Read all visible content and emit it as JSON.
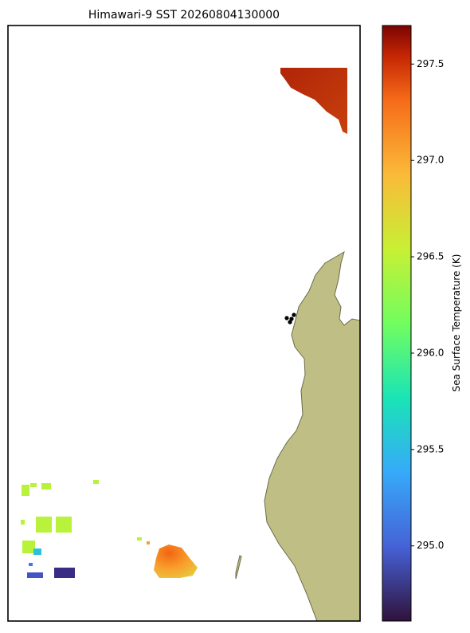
{
  "title": "Himawari-9 SST 20260804130000",
  "colorbar": {
    "label": "Sea Surface Temperature (K)",
    "lim": [
      294.61,
      297.7
    ],
    "ticks": [
      {
        "value": 295,
        "label": "295.0"
      },
      {
        "value": 295.5,
        "label": "295.5"
      },
      {
        "value": 296,
        "label": "296.0"
      },
      {
        "value": 296.5,
        "label": "296.5"
      },
      {
        "value": 297,
        "label": "297.0"
      },
      {
        "value": 297.5,
        "label": "297.5"
      }
    ]
  }
}
